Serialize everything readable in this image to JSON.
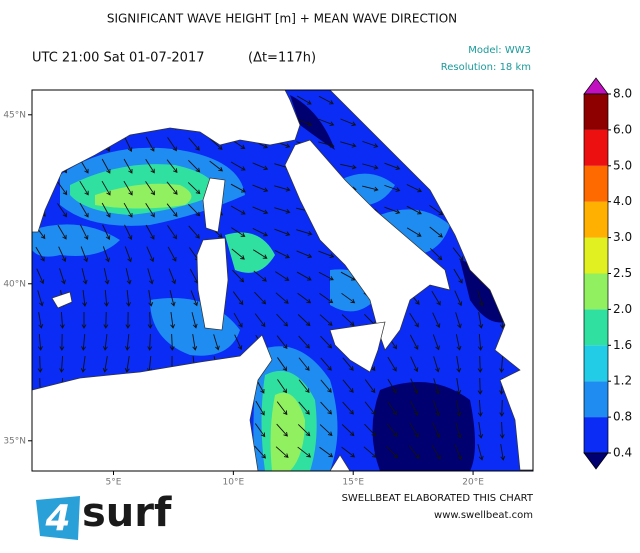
{
  "header": {
    "title": "SIGNIFICANT WAVE HEIGHT [m] + MEAN WAVE DIRECTION",
    "time": "UTC 21:00 Sat 01-07-2017",
    "lead": "(Δt=117h)",
    "model": "Model: WW3",
    "resolution": "Resolution: 18 km"
  },
  "map": {
    "xlim": [
      1.6,
      22.5
    ],
    "ylim": [
      34,
      45.7
    ],
    "xticks": [
      {
        "value": 5,
        "label": "5°E"
      },
      {
        "value": 10,
        "label": "10°E"
      },
      {
        "value": 15,
        "label": "15°E"
      },
      {
        "value": 20,
        "label": "20°E"
      }
    ],
    "yticks": [
      {
        "value": 35,
        "label": "35°N"
      },
      {
        "value": 40,
        "label": "40°N"
      },
      {
        "value": 45,
        "label": "45°N"
      }
    ]
  },
  "colorbar": {
    "levels": [
      0.4,
      0.8,
      1.2,
      1.6,
      {
        "value": 2,
        "label": "2.0"
      },
      2.5,
      {
        "value": 3,
        "label": "3.0"
      },
      {
        "value": 4,
        "label": "4.0"
      },
      {
        "value": 5,
        "label": "5.0"
      },
      {
        "value": 6,
        "label": "6.0"
      },
      {
        "value": 8,
        "label": "8.0"
      }
    ],
    "colors": [
      "#0a2cf5",
      "#1e8cf0",
      "#22cce6",
      "#30e0a0",
      "#90f060",
      "#e0f020",
      "#ffb000",
      "#ff6a00",
      "#ec1010",
      "#8e0000"
    ],
    "under_color": "#000070",
    "over_color": "#c010c0"
  },
  "footer": {
    "credit": "SWELLBEAT ELABORATED THIS CHART",
    "url": "www.swellbeat.com"
  },
  "logo": {
    "digit": "4",
    "word": "surf"
  }
}
